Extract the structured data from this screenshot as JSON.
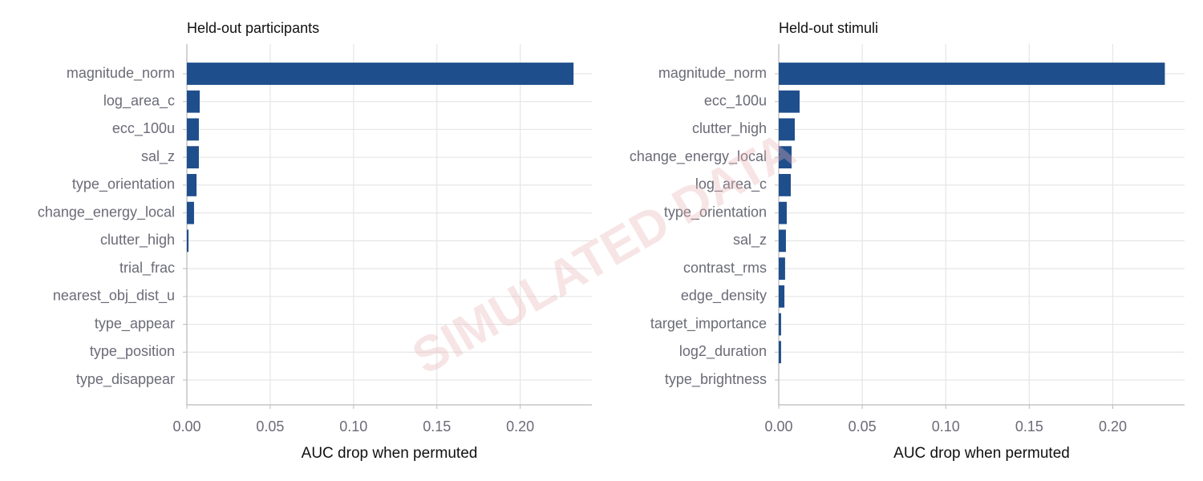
{
  "watermark": "SIMULATED DATA",
  "chart_data": [
    {
      "type": "barh",
      "title": "Held-out participants",
      "xlabel": "AUC drop when permuted",
      "color": "#1f4e8c",
      "grid": true,
      "categories": [
        "magnitude_norm",
        "log_area_c",
        "ecc_100u",
        "sal_z",
        "type_orientation",
        "change_energy_local",
        "clutter_high",
        "trial_frac",
        "nearest_obj_dist_u",
        "type_appear",
        "type_position",
        "type_disappear"
      ],
      "values": [
        0.232,
        0.0077,
        0.0072,
        0.0072,
        0.0058,
        0.0043,
        0.001,
        0,
        0,
        0,
        0,
        0
      ],
      "xlim": [
        0,
        0.243
      ],
      "xticks": [
        {
          "value": 0,
          "label": "0.00"
        },
        {
          "value": 0.05,
          "label": "0.05"
        },
        {
          "value": 0.1,
          "label": "0.10"
        },
        {
          "value": 0.15,
          "label": "0.15"
        },
        {
          "value": 0.2,
          "label": "0.20"
        }
      ]
    },
    {
      "type": "barh",
      "title": "Held-out stimuli",
      "xlabel": "AUC drop when permuted",
      "color": "#1f4e8c",
      "grid": true,
      "categories": [
        "magnitude_norm",
        "ecc_100u",
        "clutter_high",
        "change_energy_local",
        "log_area_c",
        "type_orientation",
        "sal_z",
        "contrast_rms",
        "edge_density",
        "target_importance",
        "log2_duration",
        "type_brightness"
      ],
      "values": [
        0.2312,
        0.0125,
        0.0096,
        0.0077,
        0.0072,
        0.0048,
        0.0043,
        0.0038,
        0.0034,
        0.0014,
        0.0014,
        0
      ],
      "xlim": [
        0,
        0.243
      ],
      "xticks": [
        {
          "value": 0,
          "label": "0.00"
        },
        {
          "value": 0.05,
          "label": "0.05"
        },
        {
          "value": 0.1,
          "label": "0.10"
        },
        {
          "value": 0.15,
          "label": "0.15"
        },
        {
          "value": 0.2,
          "label": "0.20"
        }
      ]
    }
  ]
}
